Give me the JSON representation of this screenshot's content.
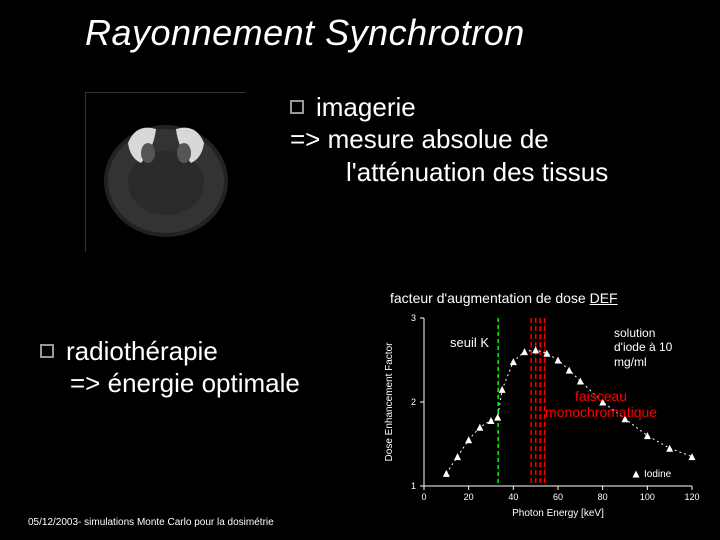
{
  "title": "Rayonnement Synchrotron",
  "bullet1": {
    "label": "imagerie",
    "implies_prefix": "=>",
    "implies_line1": "mesure absolue de",
    "implies_line2": "l'atténuation des tissus"
  },
  "bullet2": {
    "label": "radiothérapie",
    "implies_prefix": "=>",
    "implies_text": "énergie optimale"
  },
  "def_label_prefix": "facteur d'augmentation de dose ",
  "def_label_abbr": "DEF",
  "chart": {
    "type": "scatter-line",
    "series_name": "Iodine",
    "xlabel": "Photon Energy [keV]",
    "ylabel": "Dose Enhancement Factor",
    "xlim": [
      0,
      120
    ],
    "ylim": [
      1,
      3
    ],
    "xticks": [
      0,
      20,
      40,
      60,
      80,
      100,
      120
    ],
    "yticks": [
      1,
      2,
      3
    ],
    "x_vals": [
      10,
      15,
      20,
      25,
      30,
      33,
      35,
      40,
      45,
      50,
      55,
      60,
      65,
      70,
      80,
      90,
      100,
      110,
      120
    ],
    "y_vals": [
      1.15,
      1.35,
      1.55,
      1.7,
      1.78,
      1.82,
      2.15,
      2.48,
      2.6,
      2.62,
      2.58,
      2.5,
      2.38,
      2.25,
      2.0,
      1.8,
      1.6,
      1.45,
      1.35
    ],
    "marker_color": "#ffffff",
    "marker_style": "triangle",
    "bg_color": "#000000",
    "axis_color": "#ffffff",
    "k_edge_line_x": 33.2,
    "k_edge_color": "#00ff00",
    "mono_lines_x": [
      48,
      50,
      52,
      54
    ],
    "mono_color": "#ff0000",
    "label_fontsize": 10,
    "tick_fontsize": 9
  },
  "seuil_label": "seuil K",
  "iodine_label_l1": "solution",
  "iodine_label_l2": "d'iode à 10",
  "iodine_label_l3": "mg/ml",
  "faisceau_l1": "faisceau",
  "faisceau_l2": "monochromatique",
  "footer": "05/12/2003- simulations Monte Carlo pour la dosimétrie"
}
